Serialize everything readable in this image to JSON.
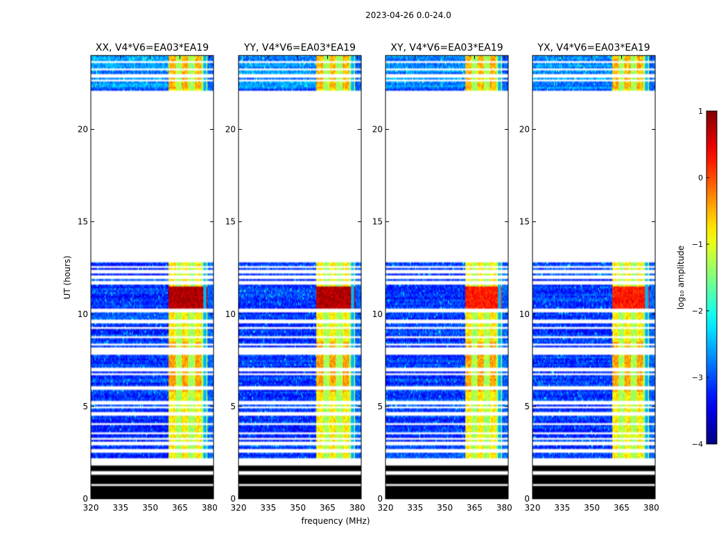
{
  "chart_data": {
    "type": "heatmap",
    "title": "2023-04-26 0.0-24.0",
    "xlabel": "frequency (MHz)",
    "ylabel": "UT (hours)",
    "xlim": [
      320,
      382
    ],
    "ylim": [
      0,
      24
    ],
    "x_ticks": [
      320,
      335,
      350,
      365,
      380
    ],
    "y_ticks": [
      0,
      5,
      10,
      15,
      20
    ],
    "x_tick_labels": [
      "320",
      "335",
      "350",
      "365",
      "380"
    ],
    "y_tick_labels": [
      "0",
      "5",
      "10",
      "15",
      "20"
    ],
    "panels": [
      {
        "name": "XX",
        "title": "XX, V4*V6=EA03*EA19",
        "rfi_band_start": 359.5,
        "burst_level": 0.95
      },
      {
        "name": "YY",
        "title": "YY, V4*V6=EA03*EA19",
        "rfi_band_start": 359.5,
        "burst_level": 0.95
      },
      {
        "name": "XY",
        "title": "XY, V4*V6=EA03*EA19",
        "rfi_band_start": 360.5,
        "burst_level": 0.85
      },
      {
        "name": "YX",
        "title": "YX, V4*V6=EA03*EA19",
        "rfi_band_start": 360.5,
        "burst_level": 0.85
      }
    ],
    "data_gaps_hours": [
      [
        12.8,
        22.1
      ],
      [
        1.8,
        2.05
      ],
      [
        22.6,
        22.75
      ]
    ],
    "flagged_low_hours": [
      0,
      1.8
    ],
    "colorbar": {
      "label": "log₁₀ amplitude",
      "range": [
        -4,
        1
      ],
      "ticks": [
        1,
        0,
        -1,
        -2,
        -3,
        -4
      ],
      "tick_labels": [
        "1",
        "0",
        "−1",
        "−2",
        "−3",
        "−4"
      ],
      "colormap": "jet"
    }
  }
}
